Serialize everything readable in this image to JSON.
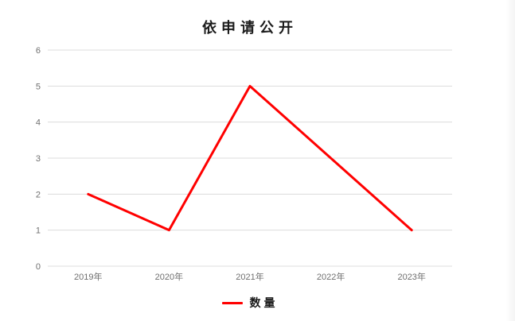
{
  "chart": {
    "title": "依申请公开",
    "legend": {
      "label": "数量"
    }
  },
  "chart_data": {
    "type": "line",
    "title": "依申请公开",
    "categories": [
      "2019年",
      "2020年",
      "2021年",
      "2022年",
      "2023年"
    ],
    "series": [
      {
        "name": "数量",
        "color": "#ff0000",
        "values": [
          2,
          1,
          5,
          3,
          1
        ]
      }
    ],
    "xlabel": "",
    "ylabel": "",
    "ylim": [
      0,
      6
    ],
    "ytick_step": 1,
    "yticks": [
      0,
      1,
      2,
      3,
      4,
      5,
      6
    ],
    "grid": true,
    "markers": false,
    "legend_position": "bottom",
    "colors": {
      "line": "#ff0000",
      "gridline": "#dcdcdc",
      "tick_label": "#6f6f6f",
      "title_text": "#1b1b1b",
      "background": "#ffffff"
    }
  }
}
